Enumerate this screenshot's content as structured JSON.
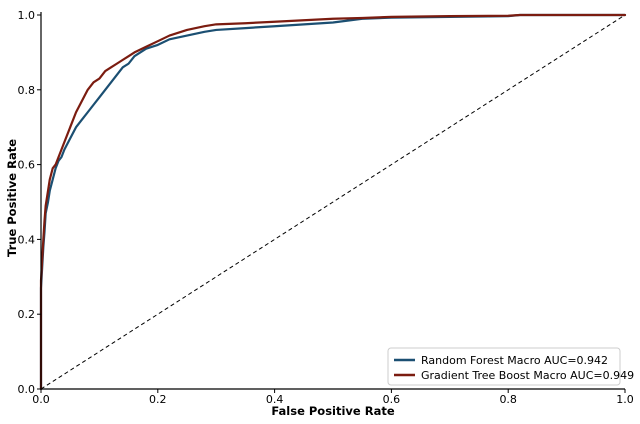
{
  "chart_data": {
    "type": "line",
    "title": "",
    "xlabel": "False Positive Rate",
    "ylabel": "True Positive Rate",
    "xlim": [
      0.0,
      1.0
    ],
    "ylim": [
      0.0,
      1.0
    ],
    "xticks": [
      "0.0",
      "0.2",
      "0.4",
      "0.6",
      "0.8",
      "1.0"
    ],
    "yticks": [
      "0.0",
      "0.2",
      "0.4",
      "0.6",
      "0.8",
      "1.0"
    ],
    "grid": false,
    "legend_position": "bottom-right",
    "diagonal": {
      "style": "dashed",
      "color": "#000000",
      "from": [
        0,
        0
      ],
      "to": [
        1,
        1
      ]
    },
    "series": [
      {
        "name": "Random Forest  Macro AUC=0.942",
        "color": "#1b4f72",
        "x": [
          0.0,
          0.0,
          0.004,
          0.006,
          0.008,
          0.012,
          0.015,
          0.02,
          0.025,
          0.03,
          0.035,
          0.04,
          0.05,
          0.06,
          0.07,
          0.08,
          0.09,
          0.1,
          0.11,
          0.12,
          0.13,
          0.14,
          0.15,
          0.16,
          0.18,
          0.2,
          0.22,
          0.25,
          0.28,
          0.3,
          0.35,
          0.4,
          0.45,
          0.5,
          0.55,
          0.6,
          0.7,
          0.8,
          0.82,
          0.9,
          1.0
        ],
        "y": [
          0.0,
          0.27,
          0.38,
          0.42,
          0.47,
          0.5,
          0.53,
          0.56,
          0.59,
          0.61,
          0.62,
          0.64,
          0.67,
          0.7,
          0.72,
          0.74,
          0.76,
          0.78,
          0.8,
          0.82,
          0.84,
          0.86,
          0.87,
          0.89,
          0.91,
          0.92,
          0.935,
          0.945,
          0.955,
          0.96,
          0.965,
          0.97,
          0.975,
          0.98,
          0.99,
          0.993,
          0.995,
          0.997,
          1.0,
          1.0,
          1.0
        ]
      },
      {
        "name": "Gradient Tree Boost  Macro AUC=0.949",
        "color": "#7b1c10",
        "x": [
          0.0,
          0.0,
          0.004,
          0.006,
          0.008,
          0.012,
          0.015,
          0.02,
          0.025,
          0.03,
          0.035,
          0.04,
          0.05,
          0.06,
          0.07,
          0.08,
          0.09,
          0.1,
          0.11,
          0.12,
          0.13,
          0.14,
          0.15,
          0.16,
          0.18,
          0.2,
          0.22,
          0.25,
          0.28,
          0.3,
          0.35,
          0.4,
          0.45,
          0.5,
          0.55,
          0.6,
          0.7,
          0.8,
          0.82,
          0.9,
          1.0
        ],
        "y": [
          0.0,
          0.29,
          0.4,
          0.45,
          0.49,
          0.53,
          0.56,
          0.59,
          0.6,
          0.62,
          0.64,
          0.66,
          0.7,
          0.74,
          0.77,
          0.8,
          0.82,
          0.83,
          0.85,
          0.86,
          0.87,
          0.88,
          0.89,
          0.9,
          0.915,
          0.93,
          0.945,
          0.96,
          0.97,
          0.975,
          0.978,
          0.982,
          0.986,
          0.99,
          0.992,
          0.995,
          0.997,
          0.998,
          1.0,
          1.0,
          1.0
        ]
      }
    ]
  }
}
